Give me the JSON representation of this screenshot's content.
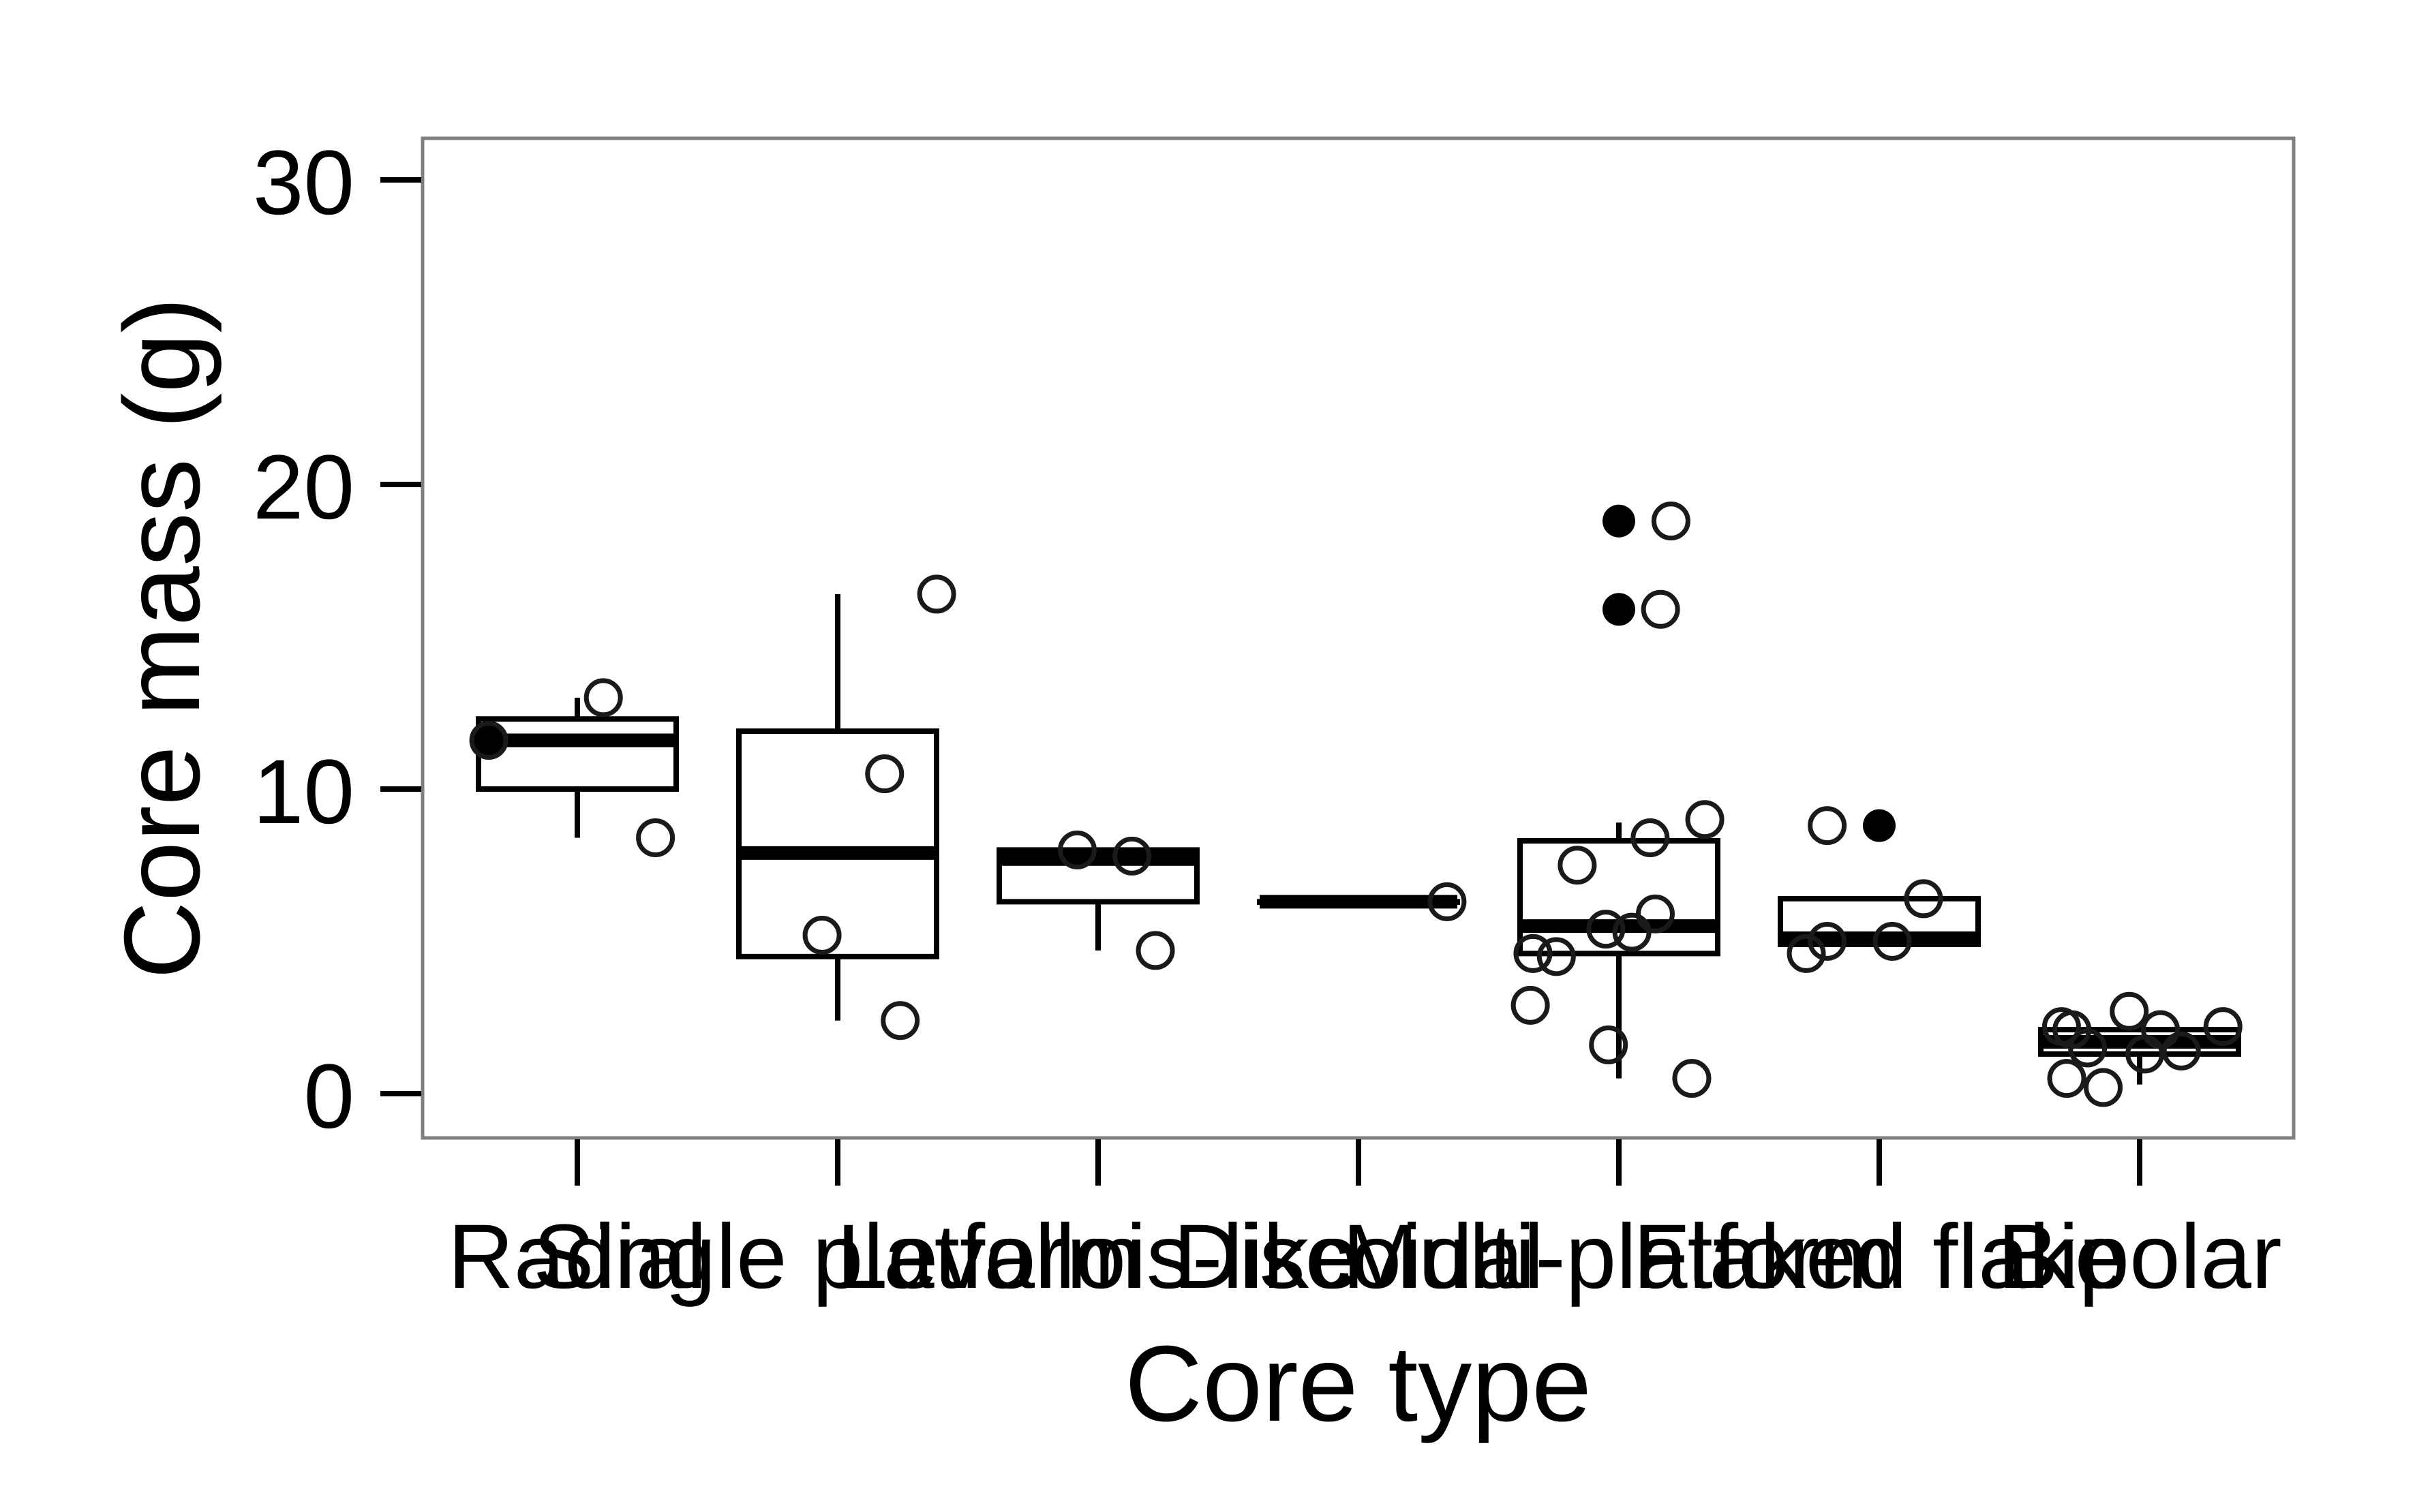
{
  "chart_data": {
    "type": "box",
    "title": "",
    "xlabel": "Core type",
    "ylabel": "Core mass (g)",
    "ylim": [
      -1.5,
      31.5
    ],
    "yticks": [
      0,
      10,
      20,
      30
    ],
    "grid": false,
    "legend": "none",
    "categories": [
      "Radial",
      "Single platform",
      "Levallois-like",
      "Discoidal",
      "Multi-platform",
      "Flaked flake",
      "Bipolar"
    ],
    "boxes": [
      {
        "category": "Radial",
        "whisker_low": 8.4,
        "q1": 10.0,
        "median": 11.6,
        "q3": 12.3,
        "whisker_high": 13.0
      },
      {
        "category": "Single platform",
        "whisker_low": 2.4,
        "q1": 4.5,
        "median": 7.9,
        "q3": 11.9,
        "whisker_high": 16.4
      },
      {
        "category": "Levallois-like",
        "whisker_low": 4.7,
        "q1": 6.3,
        "median": 7.7,
        "q3": 8.0,
        "whisker_high": 8.0
      },
      {
        "category": "Discoidal",
        "whisker_low": 6.3,
        "q1": 6.3,
        "median": 6.3,
        "q3": 6.3,
        "whisker_high": 6.3
      },
      {
        "category": "Multi-platform",
        "whisker_low": 0.5,
        "q1": 4.6,
        "median": 5.5,
        "q3": 8.3,
        "whisker_high": 8.9
      },
      {
        "category": "Flaked flake",
        "whisker_low": 4.9,
        "q1": 4.9,
        "median": 5.1,
        "q3": 6.4,
        "whisker_high": 6.4
      },
      {
        "category": "Bipolar",
        "whisker_low": 0.3,
        "q1": 1.3,
        "median": 1.7,
        "q3": 2.1,
        "whisker_high": 2.1
      }
    ],
    "points": [
      {
        "category": "Radial",
        "offset": -0.34,
        "y": 11.6
      },
      {
        "category": "Radial",
        "offset": 0.1,
        "y": 13.0
      },
      {
        "category": "Radial",
        "offset": 0.3,
        "y": 8.4
      },
      {
        "category": "Single platform",
        "offset": 0.38,
        "y": 16.4
      },
      {
        "category": "Single platform",
        "offset": 0.18,
        "y": 10.5
      },
      {
        "category": "Single platform",
        "offset": -0.06,
        "y": 5.2
      },
      {
        "category": "Single platform",
        "offset": 0.24,
        "y": 2.4
      },
      {
        "category": "Levallois-like",
        "offset": -0.08,
        "y": 8.0
      },
      {
        "category": "Levallois-like",
        "offset": 0.13,
        "y": 7.8
      },
      {
        "category": "Levallois-like",
        "offset": 0.22,
        "y": 4.7
      },
      {
        "category": "Discoidal",
        "offset": 0.34,
        "y": 6.3
      },
      {
        "category": "Multi-platform",
        "offset": 0.2,
        "y": 18.8
      },
      {
        "category": "Multi-platform",
        "offset": 0.16,
        "y": 15.9
      },
      {
        "category": "Multi-platform",
        "offset": 0.33,
        "y": 9.0
      },
      {
        "category": "Multi-platform",
        "offset": 0.12,
        "y": 8.4
      },
      {
        "category": "Multi-platform",
        "offset": -0.16,
        "y": 7.5
      },
      {
        "category": "Multi-platform",
        "offset": 0.14,
        "y": 5.9
      },
      {
        "category": "Multi-platform",
        "offset": -0.05,
        "y": 5.4
      },
      {
        "category": "Multi-platform",
        "offset": 0.05,
        "y": 5.3
      },
      {
        "category": "Multi-platform",
        "offset": -0.33,
        "y": 4.6
      },
      {
        "category": "Multi-platform",
        "offset": -0.24,
        "y": 4.5
      },
      {
        "category": "Multi-platform",
        "offset": -0.34,
        "y": 2.9
      },
      {
        "category": "Multi-platform",
        "offset": -0.04,
        "y": 1.6
      },
      {
        "category": "Multi-platform",
        "offset": 0.28,
        "y": 0.5
      },
      {
        "category": "Flaked flake",
        "offset": -0.2,
        "y": 8.8
      },
      {
        "category": "Flaked flake",
        "offset": 0.17,
        "y": 6.4
      },
      {
        "category": "Flaked flake",
        "offset": -0.2,
        "y": 5.0
      },
      {
        "category": "Flaked flake",
        "offset": -0.28,
        "y": 4.6
      },
      {
        "category": "Flaked flake",
        "offset": 0.05,
        "y": 5.0
      },
      {
        "category": "Bipolar",
        "offset": -0.3,
        "y": 2.2
      },
      {
        "category": "Bipolar",
        "offset": -0.26,
        "y": 2.1
      },
      {
        "category": "Bipolar",
        "offset": -0.2,
        "y": 1.5
      },
      {
        "category": "Bipolar",
        "offset": -0.28,
        "y": 0.5
      },
      {
        "category": "Bipolar",
        "offset": -0.14,
        "y": 0.2
      },
      {
        "category": "Bipolar",
        "offset": -0.04,
        "y": 2.7
      },
      {
        "category": "Bipolar",
        "offset": 0.02,
        "y": 1.3
      },
      {
        "category": "Bipolar",
        "offset": 0.08,
        "y": 2.1
      },
      {
        "category": "Bipolar",
        "offset": 0.16,
        "y": 1.4
      },
      {
        "category": "Bipolar",
        "offset": 0.32,
        "y": 2.2
      }
    ],
    "outliers": [
      {
        "category": "Radial",
        "offset": -0.34,
        "y": 11.6
      },
      {
        "category": "Multi-platform",
        "offset": 0.0,
        "y": 18.8
      },
      {
        "category": "Multi-platform",
        "offset": 0.0,
        "y": 15.9
      },
      {
        "category": "Flaked flake",
        "offset": 0.0,
        "y": 8.8
      }
    ]
  }
}
